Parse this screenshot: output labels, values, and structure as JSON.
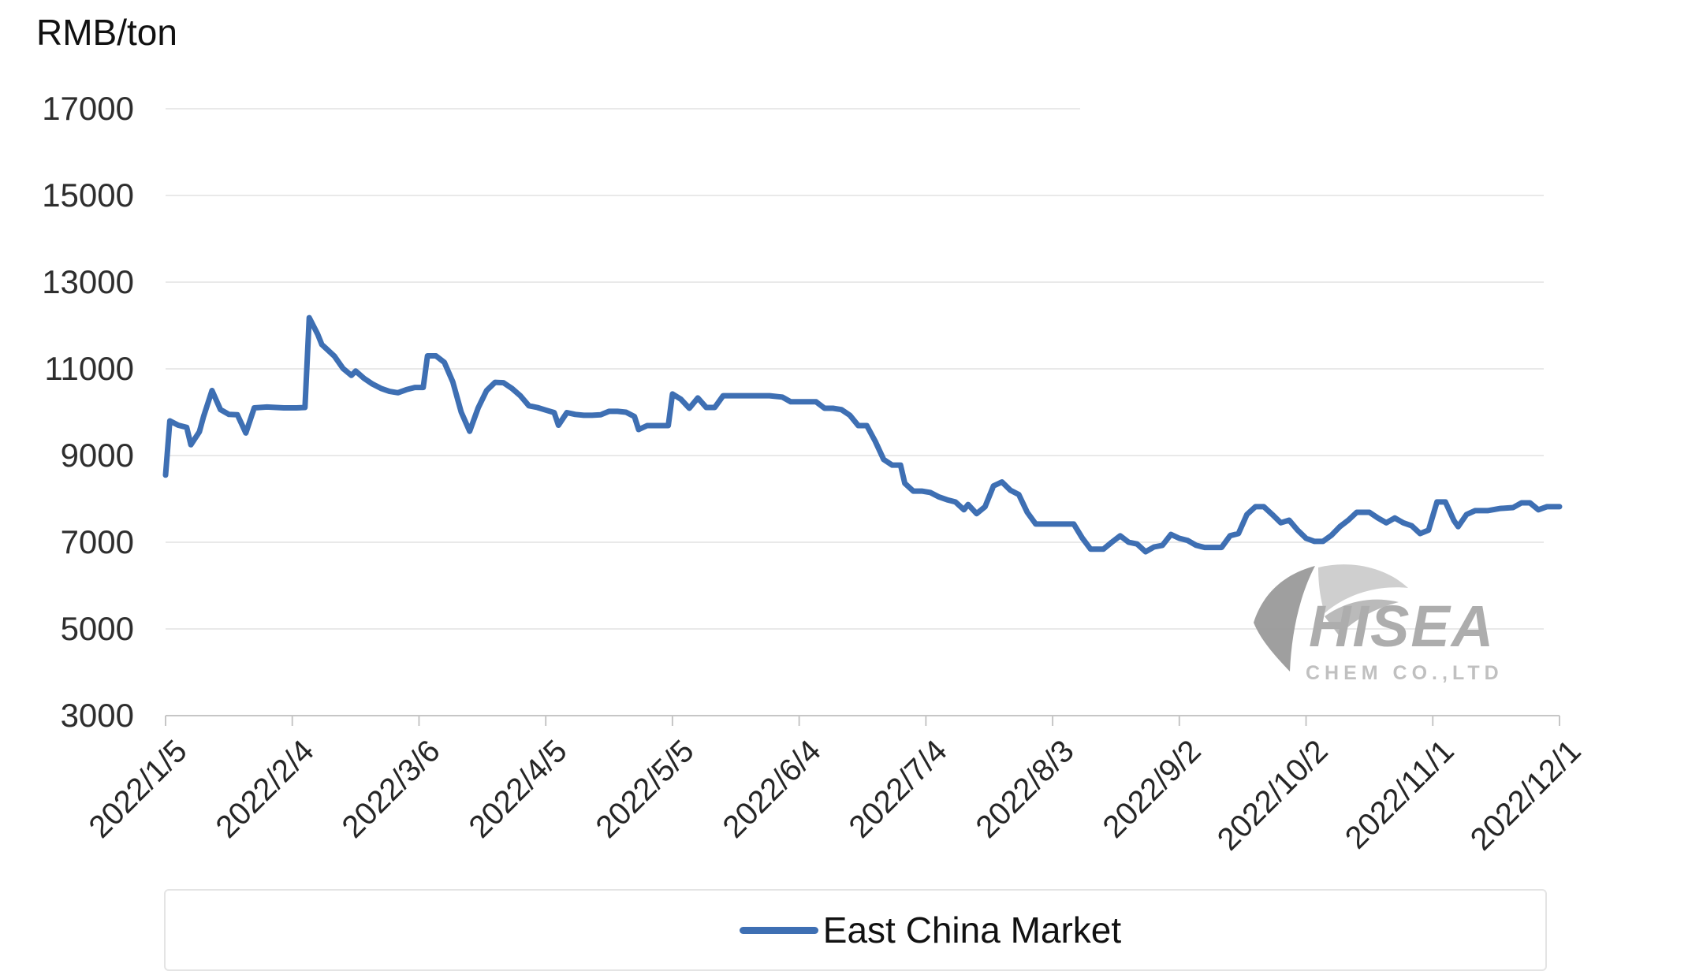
{
  "page": {
    "background": "#ffffff"
  },
  "units_label": "RMB/ton",
  "legend": {
    "label": "East China Market"
  },
  "watermark": {
    "brand": "HISEA",
    "subtitle": "CHEM CO.,LTD"
  },
  "colors": {
    "series_line": "#3e6fb3",
    "grid_line": "#e9e9e9",
    "axis_line": "#c6c6c6",
    "tick_text": "#262626",
    "watermark_dark": "#9a9a9a",
    "watermark_light": "#cdcdcd",
    "watermark_mid": "#b7b7b7"
  },
  "chart_data": {
    "type": "line",
    "title": "",
    "ylabel": "RMB/ton",
    "grid": true,
    "legend_position": "bottom",
    "ylim": [
      3000,
      17000
    ],
    "y_tick_step": 2000,
    "y_tick_labels": [
      "17000",
      "15000",
      "13000",
      "11000",
      "9000",
      "7000",
      "5000",
      "3000"
    ],
    "x_tick_labels": [
      "2022/1/5",
      "2022/2/4",
      "2022/3/6",
      "2022/4/5",
      "2022/5/5",
      "2022/6/4",
      "2022/7/4",
      "2022/8/3",
      "2022/9/2",
      "2022/10/2",
      "2022/11/1",
      "2022/12/1"
    ],
    "series": [
      {
        "name": "East China Market",
        "color": "#3e6fb3",
        "points": [
          [
            "1/5",
            8550
          ],
          [
            "1/6",
            9800
          ],
          [
            "1/8",
            9700
          ],
          [
            "1/10",
            9650
          ],
          [
            "1/11",
            9250
          ],
          [
            "1/13",
            9550
          ],
          [
            "1/14",
            9900
          ],
          [
            "1/16",
            10500
          ],
          [
            "1/18",
            10060
          ],
          [
            "1/20",
            9950
          ],
          [
            "1/22",
            9940
          ],
          [
            "1/24",
            9520
          ],
          [
            "1/26",
            10100
          ],
          [
            "1/29",
            10120
          ],
          [
            "2/2",
            10100
          ],
          [
            "2/5",
            10100
          ],
          [
            "2/7",
            10110
          ],
          [
            "2/8",
            12180
          ],
          [
            "2/10",
            11800
          ],
          [
            "2/11",
            11560
          ],
          [
            "2/12",
            11470
          ],
          [
            "2/14",
            11290
          ],
          [
            "2/16",
            11010
          ],
          [
            "2/18",
            10850
          ],
          [
            "2/19",
            10950
          ],
          [
            "2/21",
            10780
          ],
          [
            "2/23",
            10650
          ],
          [
            "2/25",
            10550
          ],
          [
            "2/27",
            10480
          ],
          [
            "3/1",
            10450
          ],
          [
            "3/3",
            10520
          ],
          [
            "3/5",
            10570
          ],
          [
            "3/7",
            10570
          ],
          [
            "3/8",
            11300
          ],
          [
            "3/10",
            11300
          ],
          [
            "3/12",
            11150
          ],
          [
            "3/14",
            10700
          ],
          [
            "3/16",
            10000
          ],
          [
            "3/18",
            9560
          ],
          [
            "3/20",
            10100
          ],
          [
            "3/22",
            10500
          ],
          [
            "3/24",
            10690
          ],
          [
            "3/26",
            10680
          ],
          [
            "3/28",
            10550
          ],
          [
            "3/30",
            10380
          ],
          [
            "4/1",
            10150
          ],
          [
            "4/3",
            10110
          ],
          [
            "4/5",
            10050
          ],
          [
            "4/7",
            9990
          ],
          [
            "4/8",
            9700
          ],
          [
            "4/10",
            9990
          ],
          [
            "4/12",
            9950
          ],
          [
            "4/14",
            9930
          ],
          [
            "4/16",
            9930
          ],
          [
            "4/18",
            9940
          ],
          [
            "4/20",
            10020
          ],
          [
            "4/22",
            10020
          ],
          [
            "4/24",
            10000
          ],
          [
            "4/26",
            9900
          ],
          [
            "4/27",
            9600
          ],
          [
            "4/29",
            9690
          ],
          [
            "5/2",
            9690
          ],
          [
            "5/4",
            9690
          ],
          [
            "5/5",
            10420
          ],
          [
            "5/7",
            10300
          ],
          [
            "5/9",
            10090
          ],
          [
            "5/11",
            10330
          ],
          [
            "5/13",
            10110
          ],
          [
            "5/15",
            10110
          ],
          [
            "5/17",
            10380
          ],
          [
            "5/20",
            10380
          ],
          [
            "5/24",
            10380
          ],
          [
            "5/28",
            10380
          ],
          [
            "5/31",
            10350
          ],
          [
            "6/2",
            10240
          ],
          [
            "6/5",
            10240
          ],
          [
            "6/8",
            10240
          ],
          [
            "6/10",
            10090
          ],
          [
            "6/12",
            10090
          ],
          [
            "6/14",
            10060
          ],
          [
            "6/16",
            9930
          ],
          [
            "6/18",
            9690
          ],
          [
            "6/20",
            9690
          ],
          [
            "6/22",
            9330
          ],
          [
            "6/24",
            8910
          ],
          [
            "6/26",
            8780
          ],
          [
            "6/28",
            8780
          ],
          [
            "6/29",
            8360
          ],
          [
            "7/1",
            8180
          ],
          [
            "7/3",
            8180
          ],
          [
            "7/5",
            8150
          ],
          [
            "7/7",
            8050
          ],
          [
            "7/9",
            7980
          ],
          [
            "7/11",
            7930
          ],
          [
            "7/13",
            7750
          ],
          [
            "7/14",
            7870
          ],
          [
            "7/16",
            7660
          ],
          [
            "7/18",
            7820
          ],
          [
            "7/20",
            8300
          ],
          [
            "7/22",
            8390
          ],
          [
            "7/24",
            8200
          ],
          [
            "7/26",
            8100
          ],
          [
            "7/28",
            7690
          ],
          [
            "7/30",
            7420
          ],
          [
            "8/2",
            7420
          ],
          [
            "8/5",
            7420
          ],
          [
            "8/8",
            7420
          ],
          [
            "8/10",
            7100
          ],
          [
            "8/12",
            6840
          ],
          [
            "8/15",
            6840
          ],
          [
            "8/17",
            7000
          ],
          [
            "8/19",
            7150
          ],
          [
            "8/21",
            7000
          ],
          [
            "8/23",
            6960
          ],
          [
            "8/25",
            6780
          ],
          [
            "8/27",
            6890
          ],
          [
            "8/29",
            6930
          ],
          [
            "8/31",
            7180
          ],
          [
            "9/2",
            7090
          ],
          [
            "9/4",
            7040
          ],
          [
            "9/6",
            6930
          ],
          [
            "9/8",
            6880
          ],
          [
            "9/10",
            6880
          ],
          [
            "9/12",
            6880
          ],
          [
            "9/14",
            7150
          ],
          [
            "9/16",
            7200
          ],
          [
            "9/18",
            7640
          ],
          [
            "9/20",
            7820
          ],
          [
            "9/22",
            7820
          ],
          [
            "9/24",
            7640
          ],
          [
            "9/26",
            7450
          ],
          [
            "9/28",
            7510
          ],
          [
            "9/30",
            7280
          ],
          [
            "10/2",
            7090
          ],
          [
            "10/4",
            7020
          ],
          [
            "10/6",
            7020
          ],
          [
            "10/8",
            7160
          ],
          [
            "10/10",
            7360
          ],
          [
            "10/12",
            7510
          ],
          [
            "10/14",
            7690
          ],
          [
            "10/17",
            7690
          ],
          [
            "10/19",
            7560
          ],
          [
            "10/21",
            7450
          ],
          [
            "10/23",
            7560
          ],
          [
            "10/25",
            7450
          ],
          [
            "10/27",
            7380
          ],
          [
            "10/29",
            7200
          ],
          [
            "10/31",
            7280
          ],
          [
            "11/2",
            7930
          ],
          [
            "11/4",
            7930
          ],
          [
            "11/6",
            7500
          ],
          [
            "11/7",
            7360
          ],
          [
            "11/9",
            7640
          ],
          [
            "11/11",
            7730
          ],
          [
            "11/14",
            7730
          ],
          [
            "11/17",
            7780
          ],
          [
            "11/20",
            7800
          ],
          [
            "11/22",
            7910
          ],
          [
            "11/24",
            7910
          ],
          [
            "11/26",
            7750
          ],
          [
            "11/28",
            7820
          ],
          [
            "11/30",
            7820
          ],
          [
            "12/1",
            7820
          ]
        ]
      }
    ]
  }
}
